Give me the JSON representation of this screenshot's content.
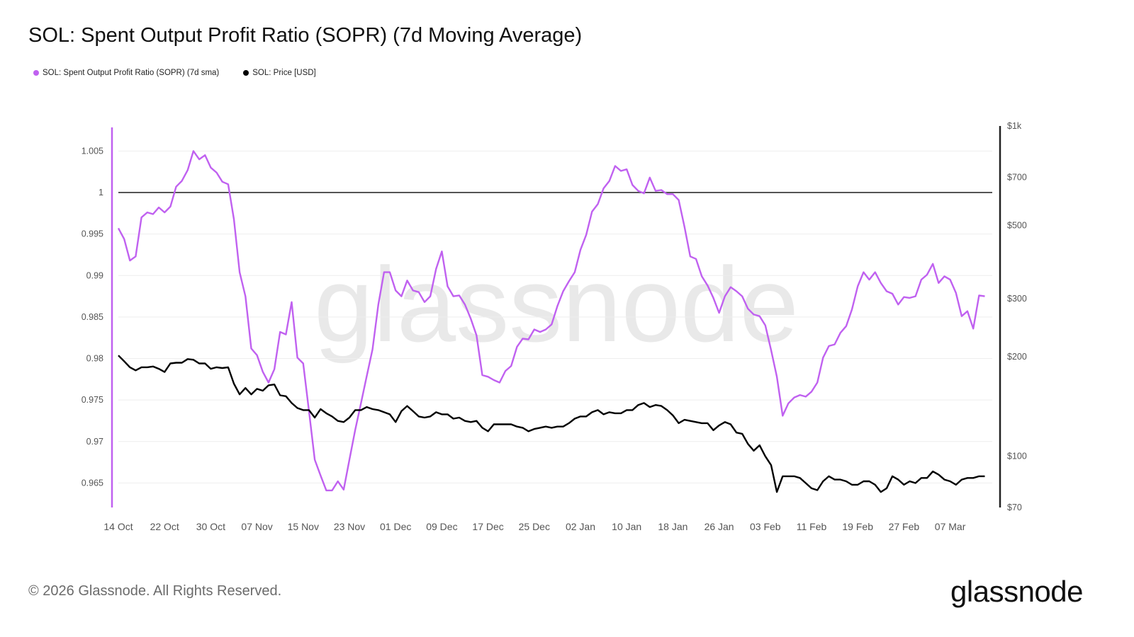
{
  "title": "SOL: Spent Output Profit Ratio (SOPR) (7d Moving Average)",
  "footer": {
    "copyright": "© 2026 Glassnode. All Rights Reserved.",
    "logo": "glassnode"
  },
  "watermark": "glassnode",
  "chart_data": {
    "type": "line",
    "title": "SOL: Spent Output Profit Ratio (SOPR) (7d Moving Average)",
    "legend_position": "top-left",
    "grid": true,
    "x_ticks": [
      "14 Oct",
      "22 Oct",
      "30 Oct",
      "07 Nov",
      "15 Nov",
      "23 Nov",
      "01 Dec",
      "09 Dec",
      "17 Dec",
      "25 Dec",
      "02 Jan",
      "10 Jan",
      "18 Jan",
      "26 Jan",
      "03 Feb",
      "11 Feb",
      "19 Feb",
      "27 Feb",
      "07 Mar"
    ],
    "y_left": {
      "range": [
        0.962,
        1.0077
      ],
      "ticks": [
        "1.005",
        "1",
        "0.995",
        "0.99",
        "0.985",
        "0.98",
        "0.975",
        "0.97",
        "0.965"
      ],
      "tick_values": [
        1.005,
        1,
        0.995,
        0.99,
        0.985,
        0.98,
        0.975,
        0.97,
        0.965
      ]
    },
    "y_right": {
      "scale": "log",
      "range": [
        70,
        1000
      ],
      "ticks": [
        "$1k",
        "$700",
        "$500",
        "$300",
        "$200",
        "$100",
        "$70"
      ],
      "tick_values": [
        1000,
        700,
        500,
        300,
        200,
        100,
        70
      ]
    },
    "reference_line": {
      "axis": "left",
      "value": 1,
      "color": "#555555"
    },
    "x": [
      "2025-10-14",
      "2025-10-15",
      "2025-10-16",
      "2025-10-17",
      "2025-10-18",
      "2025-10-19",
      "2025-10-20",
      "2025-10-21",
      "2025-10-22",
      "2025-10-23",
      "2025-10-24",
      "2025-10-25",
      "2025-10-26",
      "2025-10-27",
      "2025-10-28",
      "2025-10-29",
      "2025-10-30",
      "2025-10-31",
      "2025-11-01",
      "2025-11-02",
      "2025-11-03",
      "2025-11-04",
      "2025-11-05",
      "2025-11-06",
      "2025-11-07",
      "2025-11-08",
      "2025-11-09",
      "2025-11-10",
      "2025-11-11",
      "2025-11-12",
      "2025-11-13",
      "2025-11-14",
      "2025-11-15",
      "2025-11-16",
      "2025-11-17",
      "2025-11-18",
      "2025-11-19",
      "2025-11-20",
      "2025-11-21",
      "2025-11-22",
      "2025-11-23",
      "2025-11-24",
      "2025-11-25",
      "2025-11-26",
      "2025-11-27",
      "2025-11-28",
      "2025-11-29",
      "2025-11-30",
      "2025-12-01",
      "2025-12-02",
      "2025-12-03",
      "2025-12-04",
      "2025-12-05",
      "2025-12-06",
      "2025-12-07",
      "2025-12-08",
      "2025-12-09",
      "2025-12-10",
      "2025-12-11",
      "2025-12-12",
      "2025-12-13",
      "2025-12-14",
      "2025-12-15",
      "2025-12-16",
      "2025-12-17",
      "2025-12-18",
      "2025-12-19",
      "2025-12-20",
      "2025-12-21",
      "2025-12-22",
      "2025-12-23",
      "2025-12-24",
      "2025-12-25",
      "2025-12-26",
      "2025-12-27",
      "2025-12-28",
      "2025-12-29",
      "2025-12-30",
      "2025-12-31",
      "2026-01-01",
      "2026-01-02",
      "2026-01-03",
      "2026-01-04",
      "2026-01-05",
      "2026-01-06",
      "2026-01-07",
      "2026-01-08",
      "2026-01-09",
      "2026-01-10",
      "2026-01-11",
      "2026-01-12",
      "2026-01-13",
      "2026-01-14",
      "2026-01-15",
      "2026-01-16",
      "2026-01-17",
      "2026-01-18",
      "2026-01-19",
      "2026-01-20",
      "2026-01-21",
      "2026-01-22",
      "2026-01-23",
      "2026-01-24",
      "2026-01-25",
      "2026-01-26",
      "2026-01-27",
      "2026-01-28",
      "2026-01-29",
      "2026-01-30",
      "2026-01-31",
      "2026-02-01",
      "2026-02-02",
      "2026-02-03",
      "2026-02-04",
      "2026-02-05",
      "2026-02-06",
      "2026-02-07",
      "2026-02-08",
      "2026-02-09",
      "2026-02-10",
      "2026-02-11",
      "2026-02-12",
      "2026-02-13",
      "2026-02-14",
      "2026-02-15",
      "2026-02-16",
      "2026-02-17",
      "2026-02-18",
      "2026-02-19",
      "2026-02-20",
      "2026-02-21",
      "2026-02-22",
      "2026-02-23",
      "2026-02-24",
      "2026-02-25",
      "2026-02-26",
      "2026-02-27",
      "2026-02-28",
      "2026-03-01",
      "2026-03-02",
      "2026-03-03",
      "2026-03-04",
      "2026-03-05",
      "2026-03-06",
      "2026-03-07",
      "2026-03-08",
      "2026-03-09",
      "2026-03-10",
      "2026-03-11",
      "2026-03-12",
      "2026-03-13"
    ],
    "series": [
      {
        "name": "SOL: Spent Output Profit Ratio (SOPR) (7d sma)",
        "axis": "left",
        "color": "#c061f0",
        "values": [
          0.9957,
          0.9944,
          0.9918,
          0.9923,
          0.997,
          0.9976,
          0.9974,
          0.9982,
          0.9976,
          0.9983,
          1.0007,
          1.0014,
          1.0027,
          1.005,
          1.004,
          1.0045,
          1.003,
          1.0024,
          1.0013,
          1.001,
          0.9968,
          0.9904,
          0.9875,
          0.9812,
          0.9804,
          0.9784,
          0.9771,
          0.9787,
          0.9832,
          0.9829,
          0.9868,
          0.9801,
          0.9794,
          0.9737,
          0.9678,
          0.9659,
          0.9641,
          0.9641,
          0.9652,
          0.9642,
          0.9678,
          0.9714,
          0.9746,
          0.9779,
          0.9811,
          0.9865,
          0.9904,
          0.9904,
          0.9882,
          0.9875,
          0.9894,
          0.9882,
          0.988,
          0.9868,
          0.9875,
          0.9908,
          0.9929,
          0.9887,
          0.9875,
          0.9876,
          0.9865,
          0.9848,
          0.9828,
          0.978,
          0.9778,
          0.9774,
          0.9771,
          0.9785,
          0.9791,
          0.9814,
          0.9824,
          0.9823,
          0.9835,
          0.9832,
          0.9835,
          0.9841,
          0.9863,
          0.9881,
          0.9893,
          0.9904,
          0.9931,
          0.9949,
          0.9977,
          0.9986,
          1.0005,
          1.0014,
          1.0032,
          1.0026,
          1.0028,
          1.0009,
          1.0002,
          0.9999,
          1.0018,
          1.0002,
          1.0003,
          0.9998,
          0.9998,
          0.9991,
          0.9959,
          0.9923,
          0.992,
          0.9899,
          0.9888,
          0.9873,
          0.9855,
          0.9875,
          0.9886,
          0.9881,
          0.9875,
          0.986,
          0.9853,
          0.9851,
          0.984,
          0.981,
          0.9778,
          0.9731,
          0.9746,
          0.9753,
          0.9756,
          0.9754,
          0.976,
          0.9771,
          0.9801,
          0.9815,
          0.9817,
          0.9831,
          0.9839,
          0.9859,
          0.9887,
          0.9904,
          0.9895,
          0.9904,
          0.9891,
          0.9881,
          0.9878,
          0.9865,
          0.9874,
          0.9873,
          0.9875,
          0.9895,
          0.9901,
          0.9914,
          0.9891,
          0.9899,
          0.9895,
          0.9879,
          0.9851,
          0.9857,
          0.9836,
          0.9876,
          0.9875
        ]
      },
      {
        "name": "SOL: Price [USD]",
        "axis": "right",
        "color": "#000000",
        "values": [
          202,
          194,
          186,
          182,
          186,
          186,
          187,
          184,
          180,
          191,
          192,
          192,
          197,
          196,
          191,
          191,
          184,
          186,
          185,
          186,
          166,
          154,
          161,
          154,
          160,
          158,
          164,
          165,
          153,
          152,
          145,
          140,
          138,
          138,
          131,
          139,
          135,
          132,
          128,
          127,
          131,
          138,
          138,
          141,
          139,
          138,
          136,
          134,
          127,
          137,
          142,
          137,
          132,
          131,
          132,
          136,
          134,
          134,
          130,
          131,
          128,
          127,
          128,
          122,
          119,
          125,
          125,
          125,
          125,
          123,
          122,
          119,
          121,
          122,
          123,
          122,
          123,
          123,
          126,
          130,
          132,
          132,
          136,
          138,
          134,
          136,
          135,
          135,
          138,
          138,
          143,
          145,
          141,
          143,
          142,
          138,
          133,
          126,
          129,
          128,
          127,
          126,
          126,
          120,
          124,
          127,
          125,
          118,
          117,
          109,
          104,
          108,
          100,
          94,
          78,
          87,
          87,
          87,
          86,
          83,
          80,
          79,
          84,
          87,
          85,
          85,
          84,
          82,
          82,
          84,
          84,
          82,
          78,
          80,
          87,
          85,
          82,
          84,
          83,
          86,
          86,
          90,
          88,
          85,
          84,
          82,
          85,
          86,
          86,
          87,
          87
        ]
      }
    ]
  }
}
